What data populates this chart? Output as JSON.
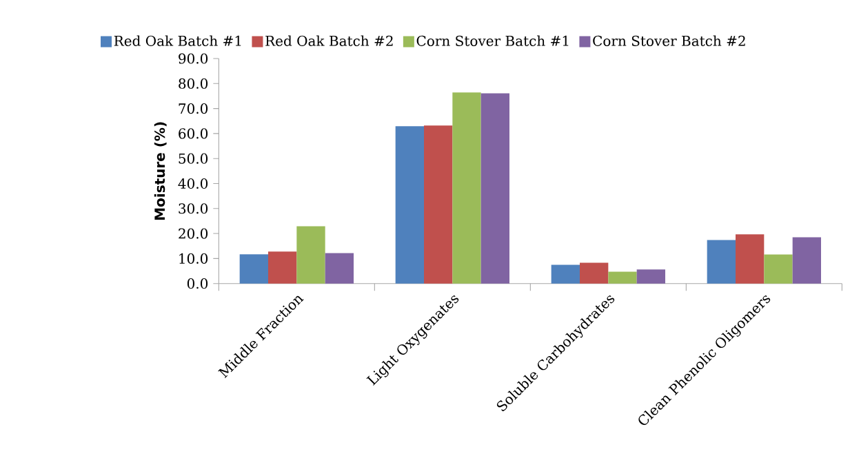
{
  "chart_data": {
    "type": "bar",
    "ylabel": "Moisture (%)",
    "categories": [
      "Middle Fraction",
      "Light Oxygenates",
      "Soluble Carbohydrates",
      "Clean Phenolic Oligomers"
    ],
    "series": [
      {
        "name": "Red Oak Batch #1",
        "color": "#4f81bd",
        "values": [
          11.7,
          62.9,
          7.5,
          17.4
        ]
      },
      {
        "name": "Red Oak Batch #2",
        "color": "#c0504d",
        "values": [
          12.8,
          63.2,
          8.3,
          19.7
        ]
      },
      {
        "name": "Corn Stover Batch #1",
        "color": "#9bbb59",
        "values": [
          22.9,
          76.4,
          4.7,
          11.6
        ]
      },
      {
        "name": "Corn Stover Batch #2",
        "color": "#8064a2",
        "values": [
          12.2,
          76.1,
          5.6,
          18.5
        ]
      }
    ],
    "ylim": [
      0,
      90
    ],
    "yticks": [
      {
        "value": 0,
        "label": "0.0"
      },
      {
        "value": 10,
        "label": "10.0"
      },
      {
        "value": 20,
        "label": "20.0"
      },
      {
        "value": 30,
        "label": "30.0"
      },
      {
        "value": 40,
        "label": "40.0"
      },
      {
        "value": 50,
        "label": "50.0"
      },
      {
        "value": 60,
        "label": "60.0"
      },
      {
        "value": 70,
        "label": "70.0"
      },
      {
        "value": 80,
        "label": "80.0"
      },
      {
        "value": 90,
        "label": "90.0"
      }
    ],
    "legend": "top",
    "grid": false
  }
}
